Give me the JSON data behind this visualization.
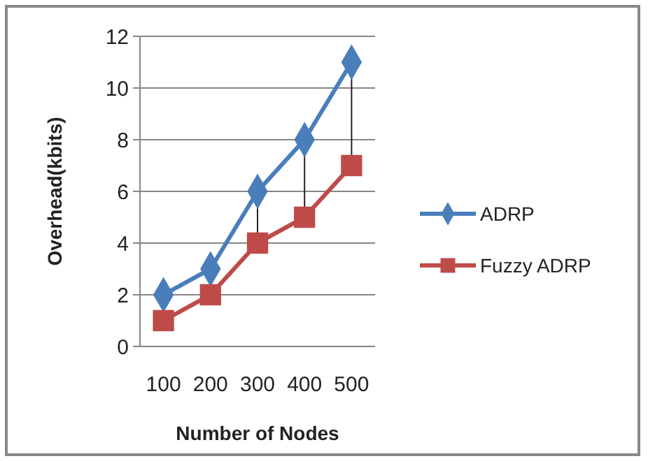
{
  "chart_data": {
    "type": "line",
    "xlabel": "Number of Nodes",
    "ylabel": "Overhead(kbits)",
    "categories": [
      "100",
      "200",
      "300",
      "400",
      "500"
    ],
    "series": [
      {
        "name": "ADRP",
        "color": "#4a7ebb",
        "marker": "diamond",
        "values": [
          2,
          3,
          6,
          8,
          11
        ]
      },
      {
        "name": "Fuzzy ADRP",
        "color": "#be4b48",
        "marker": "square",
        "values": [
          1,
          2,
          4,
          5,
          7
        ]
      }
    ],
    "ylim": [
      0,
      12
    ],
    "yticks": [
      0,
      2,
      4,
      6,
      8,
      10,
      12
    ],
    "grid": "y",
    "legend": "right"
  }
}
